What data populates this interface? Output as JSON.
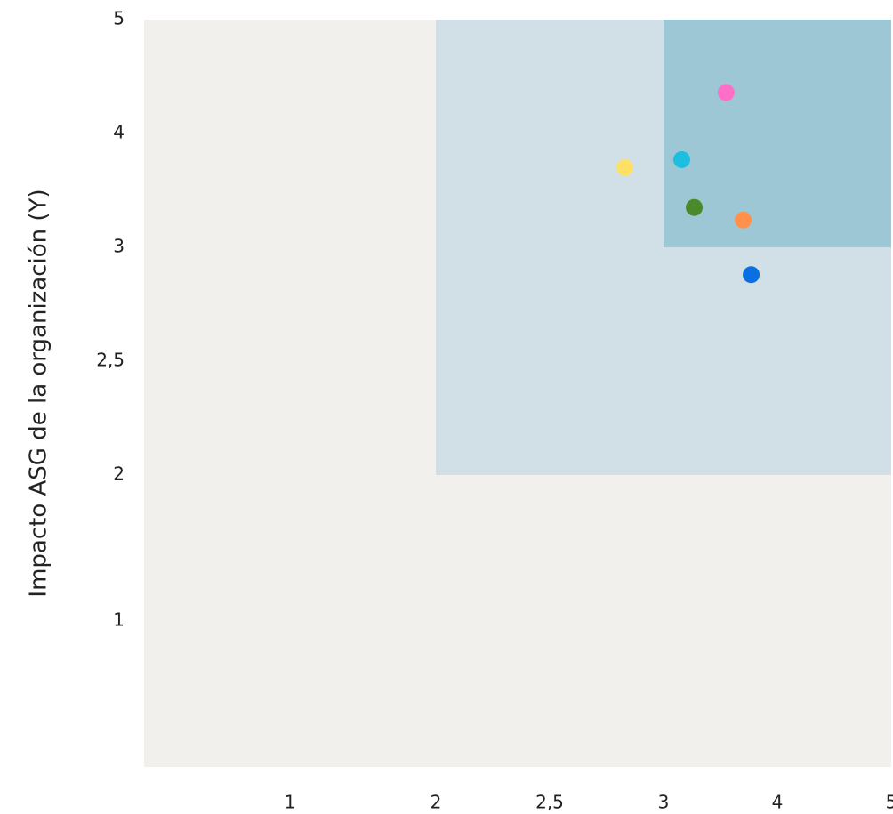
{
  "chart_data": {
    "type": "scatter",
    "ylabel": "Impacto ASG de la organización (Y)",
    "xlim": [
      0,
      5
    ],
    "ylim": [
      0,
      5
    ],
    "xticks": [
      1,
      2,
      {
        "value": 2.5,
        "label": "2,5"
      },
      3,
      4,
      5
    ],
    "yticks": [
      1,
      2,
      {
        "value": 2.5,
        "label": "2,5"
      },
      3,
      4,
      5
    ],
    "background": "#f1f0ed",
    "regions": [
      {
        "xlim": [
          2,
          5
        ],
        "ylim": [
          2,
          5
        ],
        "color": "#d1e0e7"
      },
      {
        "xlim": [
          3,
          5
        ],
        "ylim": [
          3,
          5
        ],
        "color": "#9dc7d4"
      }
    ],
    "x": [
      3.55,
      2.83,
      3.16,
      3.27,
      3.7,
      3.77
    ],
    "values": [
      4.36,
      3.7,
      3.77,
      3.35,
      3.24,
      2.88
    ],
    "colors": [
      "#ff6fc8",
      "#ffe066",
      "#1cbfe0",
      "#4a8a2a",
      "#ff914d",
      "#0a6fe0"
    ]
  }
}
